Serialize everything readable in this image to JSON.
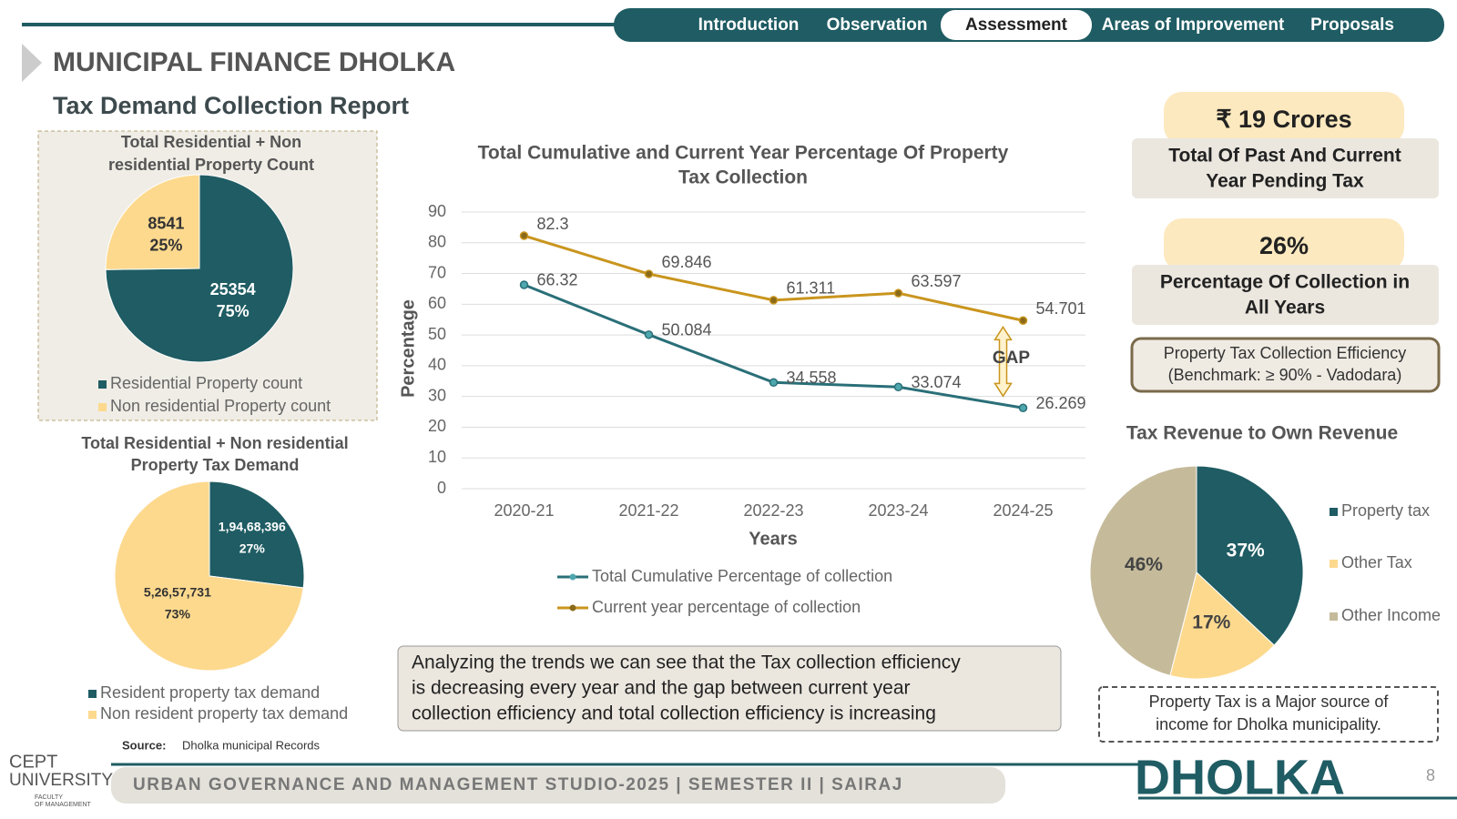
{
  "nav": [
    "Introduction",
    "Observation",
    "Assessment",
    "Areas of Improvement",
    "Proposals"
  ],
  "title": "MUNICIPAL FINANCE DHOLKA",
  "subtitle": "Tax Demand Collection Report",
  "chart_data": [
    {
      "type": "pie",
      "title": [
        "Total Residential + Non",
        "residential  Property Count"
      ],
      "categories": [
        "Residential Property count",
        "Non residential Property count"
      ],
      "values": [
        25354,
        8541
      ],
      "share_labels": [
        "75%",
        "25%"
      ],
      "colors": [
        "#1f5c63",
        "#fdd98e"
      ]
    },
    {
      "type": "line",
      "title": [
        "Total Cumulative and Current Year Percentage Of Property",
        "Tax Collection"
      ],
      "categories": [
        "2020-21",
        "2021-22",
        "2022-23",
        "2023-24",
        "2024-25"
      ],
      "series": [
        {
          "name": "Total Cumulative Percentage of collection",
          "color": "#2a6f78",
          "values": [
            66.32,
            50.084,
            34.558,
            33.074,
            26.269
          ]
        },
        {
          "name": "Current year percentage of collection",
          "color": "#c9951e",
          "values": [
            82.3,
            69.846,
            61.311,
            63.597,
            54.701
          ]
        }
      ],
      "ylim": [
        0,
        90
      ],
      "yticks": [
        0,
        10,
        20,
        30,
        40,
        50,
        60,
        70,
        80,
        90
      ],
      "grid": true,
      "x_label": "Years",
      "y_label": "Percentage",
      "annotation": "GAP"
    },
    {
      "type": "pie",
      "title": [
        "Total Residential + Non residential",
        "Property Tax Demand"
      ],
      "categories": [
        "Resident property tax demand",
        "Non resident property tax demand"
      ],
      "values": [
        19468396,
        52657731
      ],
      "value_labels": [
        "1,94,68,396",
        "5,26,57,731"
      ],
      "share_labels": [
        "27%",
        "73%"
      ],
      "colors": [
        "#1f5c63",
        "#fdd98e"
      ]
    },
    {
      "type": "pie",
      "title": [
        "Tax Revenue to Own Revenue"
      ],
      "categories": [
        "Property tax",
        "Other Tax",
        "Other Income"
      ],
      "values": [
        37,
        17,
        46
      ],
      "value_labels": [
        "37%",
        "17%",
        "46%"
      ],
      "colors": [
        "#1f5c63",
        "#fdd98e",
        "#c5bb9b"
      ]
    }
  ],
  "cards": [
    {
      "headline": "₹ 19 Crores",
      "text": [
        "Total Of Past And Current",
        "Year Pending Tax"
      ]
    },
    {
      "headline": "26%",
      "text": [
        "Percentage Of Collection in",
        "All Years"
      ]
    }
  ],
  "efficiency": [
    "Property Tax Collection Efficiency",
    "(Benchmark: ≥ 90% -  Vadodara)"
  ],
  "analysis": [
    "Analyzing the trends we can see that the Tax collection efficiency",
    "is decreasing every year and the gap between current year",
    "collection efficiency and total collection efficiency is increasing"
  ],
  "note": [
    "Property Tax is a Major source of",
    "income for Dholka municipality."
  ],
  "source": {
    "label": "Source:",
    "text": "Dholka municipal Records"
  },
  "footer": {
    "text": "URBAN GOVERNANCE AND MANAGEMENT STUDIO-2025 | SEMESTER II | SAIRAJ",
    "brand": "DHOLKA",
    "page": "8",
    "logo": [
      "CEPT",
      "UNIVERSITY",
      "FACULTY",
      "OF MANAGEMENT"
    ]
  }
}
